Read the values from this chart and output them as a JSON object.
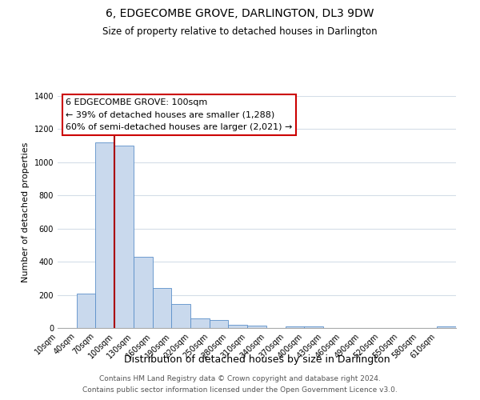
{
  "title": "6, EDGECOMBE GROVE, DARLINGTON, DL3 9DW",
  "subtitle": "Size of property relative to detached houses in Darlington",
  "xlabel": "Distribution of detached houses by size in Darlington",
  "ylabel": "Number of detached properties",
  "bin_labels": [
    "10sqm",
    "40sqm",
    "70sqm",
    "100sqm",
    "130sqm",
    "160sqm",
    "190sqm",
    "220sqm",
    "250sqm",
    "280sqm",
    "310sqm",
    "340sqm",
    "370sqm",
    "400sqm",
    "430sqm",
    "460sqm",
    "490sqm",
    "520sqm",
    "550sqm",
    "580sqm",
    "610sqm"
  ],
  "bar_heights": [
    0,
    210,
    1120,
    1100,
    430,
    240,
    145,
    60,
    50,
    20,
    15,
    0,
    10,
    10,
    0,
    0,
    0,
    0,
    0,
    0,
    10
  ],
  "bar_color": "#c9d9ed",
  "bar_edge_color": "#5b8fc9",
  "bar_width": 1.0,
  "vline_x": 3,
  "vline_color": "#aa0000",
  "annotation_title": "6 EDGECOMBE GROVE: 100sqm",
  "annotation_line1": "← 39% of detached houses are smaller (1,288)",
  "annotation_line2": "60% of semi-detached houses are larger (2,021) →",
  "annotation_box_color": "#ffffff",
  "annotation_box_edge": "#cc0000",
  "ylim": [
    0,
    1400
  ],
  "yticks": [
    0,
    200,
    400,
    600,
    800,
    1000,
    1200,
    1400
  ],
  "footnote1": "Contains HM Land Registry data © Crown copyright and database right 2024.",
  "footnote2": "Contains public sector information licensed under the Open Government Licence v3.0.",
  "bg_color": "#ffffff",
  "grid_color": "#d4dde8",
  "title_fontsize": 10,
  "subtitle_fontsize": 8.5,
  "ylabel_fontsize": 8,
  "xlabel_fontsize": 9
}
